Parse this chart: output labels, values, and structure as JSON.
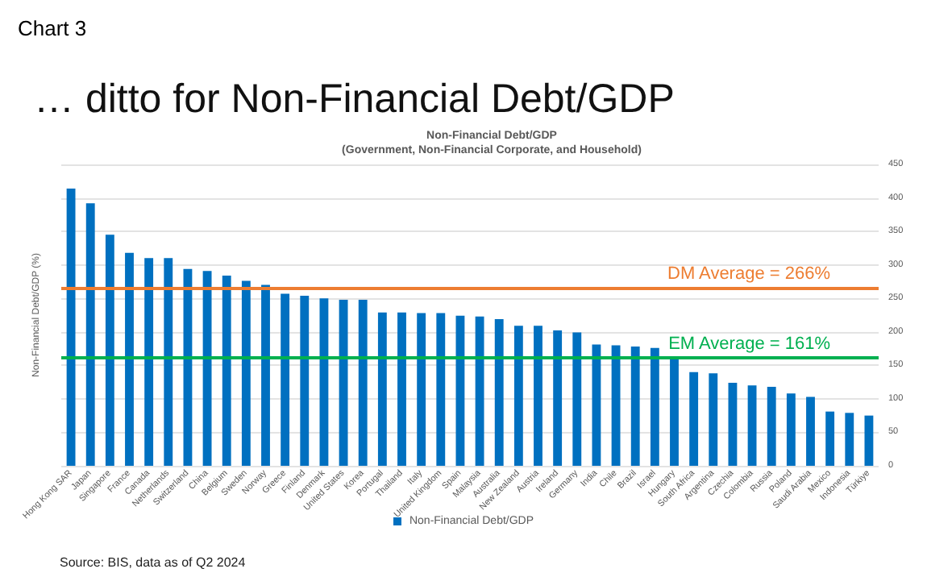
{
  "chart_data": {
    "type": "bar",
    "title": "Non-Financial Debt/GDP",
    "subtitle": "(Government, Non-Financial Corporate, and Household)",
    "ylabel": "Non-Financial Debt/GDP (%)",
    "annotations": [
      "Chart 3",
      "… ditto for Non-Financial Debt/GDP",
      "Source: BIS, data as of Q2 2024"
    ],
    "categories": [
      "Hong Kong SAR",
      "Japan",
      "Singapore",
      "France",
      "Canada",
      "Netherlands",
      "Switzerland",
      "China",
      "Belgium",
      "Sweden",
      "Norway",
      "Greece",
      "Finland",
      "Denmark",
      "United States",
      "Korea",
      "Portugal",
      "Thailand",
      "Italy",
      "United Kingdom",
      "Spain",
      "Malaysia",
      "Australia",
      "New Zealand",
      "Austria",
      "Ireland",
      "Germany",
      "India",
      "Chile",
      "Brazil",
      "Israel",
      "Hungary",
      "South Africa",
      "Argentina",
      "Czechia",
      "Colombia",
      "Russia",
      "Poland",
      "Saudi Arabia",
      "Mexico",
      "Indonesia",
      "Türkiye"
    ],
    "series": [
      {
        "name": "Non-Financial Debt/GDP",
        "color": "#0070c0",
        "values": [
          414,
          392,
          345,
          318,
          310,
          310,
          294,
          291,
          284,
          276,
          270,
          257,
          254,
          250,
          248,
          248,
          229,
          229,
          228,
          228,
          224,
          223,
          219,
          209,
          209,
          202,
          199,
          181,
          180,
          178,
          176,
          162,
          140,
          138,
          124,
          120,
          118,
          108,
          103,
          81,
          79,
          75
        ]
      }
    ],
    "ylim": [
      0,
      450
    ],
    "yticks": [
      0,
      50,
      100,
      150,
      200,
      250,
      300,
      350,
      400,
      450
    ],
    "grid": "y",
    "legend": "bottom",
    "ref_lines": [
      {
        "axis": "y",
        "value": 266,
        "label": "DM Average = 266%",
        "color": "#ed7d31"
      },
      {
        "axis": "y",
        "value": 161,
        "label": "EM Average = 161%",
        "color": "#00b050"
      }
    ]
  }
}
